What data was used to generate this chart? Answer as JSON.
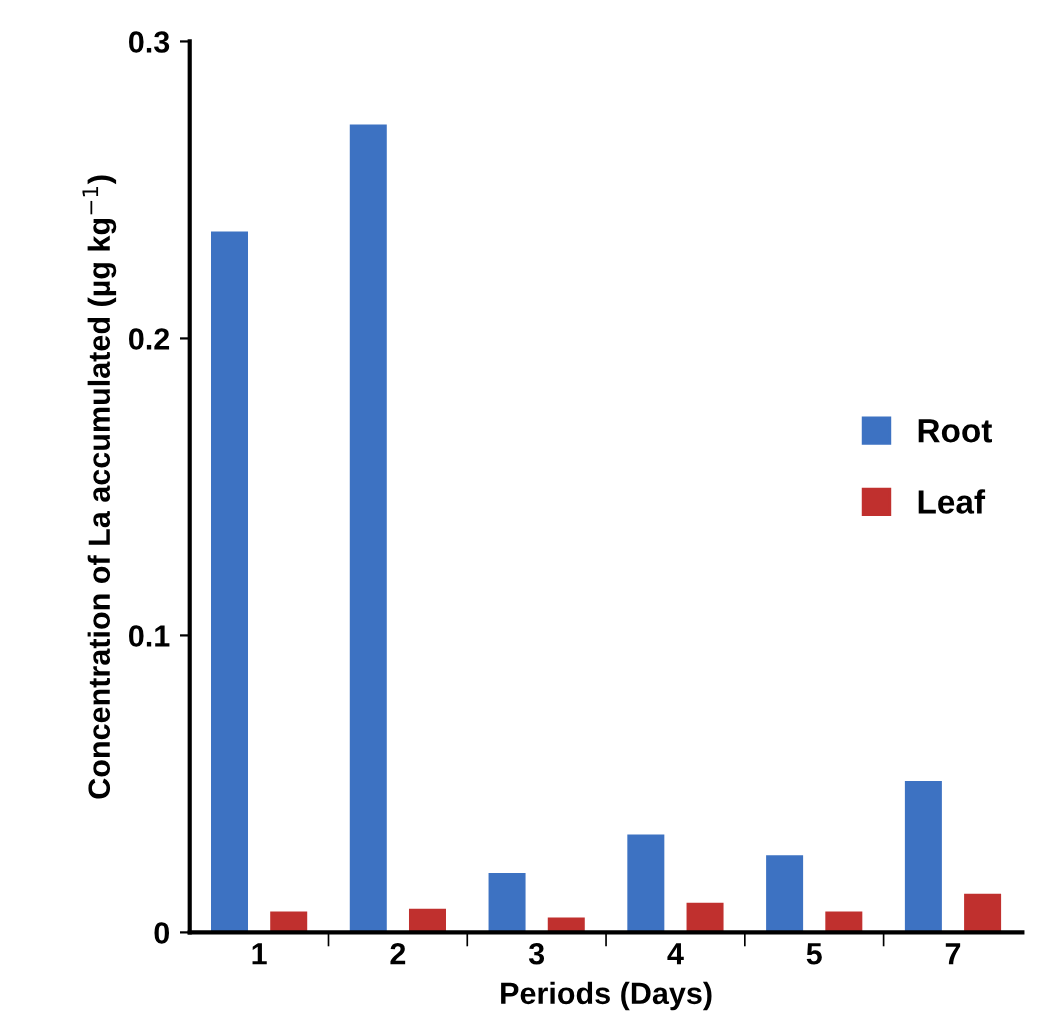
{
  "chart_data": {
    "type": "bar",
    "xlabel": "Periods (Days)",
    "ylabel": "Concentration of La accumulated (µg kg$^{−1}$)",
    "categories": [
      "1",
      "2",
      "3",
      "4",
      "5",
      "7"
    ],
    "series": [
      {
        "name": "Root",
        "color": "#3d72c2",
        "values": [
          0.236,
          0.272,
          0.02,
          0.033,
          0.026,
          0.051
        ]
      },
      {
        "name": "Leaf",
        "color": "#c0302e",
        "values": [
          0.007,
          0.008,
          0.005,
          0.01,
          0.007,
          0.013
        ]
      }
    ],
    "ylim": [
      0,
      0.3
    ],
    "yticks": [
      {
        "value": 0,
        "label": "0"
      },
      0.1,
      0.2,
      0.3
    ],
    "grid": false,
    "legend": "right"
  }
}
